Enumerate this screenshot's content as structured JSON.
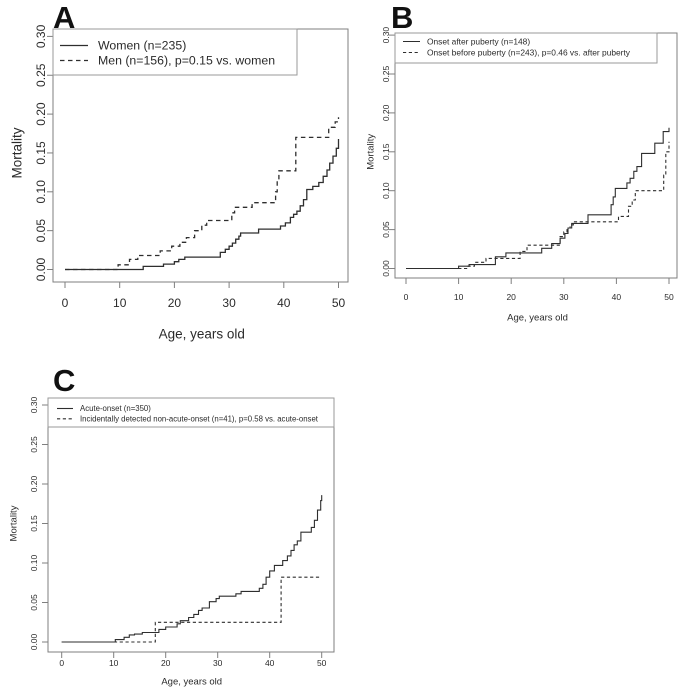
{
  "palette": {
    "curve": "#2e2e2e",
    "frame": "#7f7f7f",
    "text": "#2b2b2b",
    "legend_border": "#9a9a9a",
    "background": "#ffffff"
  },
  "chart_data": [
    {
      "type": "line",
      "step": true,
      "panel_label": "A",
      "title": "",
      "xlabel": "Age, years old",
      "ylabel": "Mortality",
      "xlim": [
        0,
        52
      ],
      "ylim": [
        0,
        0.3
      ],
      "grid": false,
      "legend_position": "top-left",
      "xticks": [
        0,
        10,
        20,
        30,
        40,
        50
      ],
      "ytick_labels": [
        "0.00",
        "0.05",
        "0.10",
        "0.15",
        "0.20",
        "0.25",
        "0.30"
      ],
      "series": [
        {
          "name": "Women (n=235)",
          "line_style": "solid",
          "x": [
            0,
            14.3,
            18,
            20,
            20.8,
            21.9,
            28.4,
            29.3,
            30,
            30.6,
            31.2,
            31.8,
            32.1,
            35.4,
            39.4,
            40.3,
            41.2,
            41.8,
            42.4,
            43,
            43.6,
            44.2,
            45.3,
            46.4,
            47.2,
            47.9,
            48.4,
            49,
            49.6,
            50
          ],
          "y": [
            0,
            0.004,
            0.007,
            0.01,
            0.013,
            0.016,
            0.022,
            0.026,
            0.03,
            0.034,
            0.039,
            0.043,
            0.047,
            0.052,
            0.056,
            0.06,
            0.067,
            0.071,
            0.075,
            0.082,
            0.09,
            0.103,
            0.107,
            0.112,
            0.12,
            0.128,
            0.137,
            0.146,
            0.156,
            0.168
          ]
        },
        {
          "name": "Men (n=156), p=0.15 vs. women",
          "line_style": "dashed",
          "x": [
            0,
            9.7,
            11.8,
            13.3,
            17.4,
            19.5,
            21,
            22.2,
            23.7,
            25,
            25.9,
            30.5,
            31,
            34.2,
            38.5,
            38.8,
            39.1,
            42.2,
            48.2,
            49.4,
            50
          ],
          "y": [
            0,
            0.006,
            0.013,
            0.018,
            0.024,
            0.03,
            0.035,
            0.041,
            0.05,
            0.057,
            0.063,
            0.073,
            0.08,
            0.086,
            0.1,
            0.115,
            0.127,
            0.17,
            0.183,
            0.19,
            0.196
          ]
        }
      ]
    },
    {
      "type": "line",
      "step": true,
      "panel_label": "B",
      "title": "",
      "xlabel": "Age, years old",
      "ylabel": "Mortality",
      "xlim": [
        0,
        52
      ],
      "ylim": [
        0,
        0.3
      ],
      "grid": false,
      "legend_position": "top-left",
      "xticks": [
        0,
        10,
        20,
        30,
        40,
        50
      ],
      "ytick_labels": [
        "0.00",
        "0.05",
        "0.10",
        "0.15",
        "0.20",
        "0.25",
        "0.30"
      ],
      "series": [
        {
          "name": "Onset after puberty (n=148)",
          "line_style": "solid",
          "x": [
            0,
            10,
            12,
            17,
            19,
            25.8,
            27.7,
            29.3,
            30.2,
            30.8,
            31.5,
            34.6,
            39,
            39.4,
            39.8,
            42,
            42.6,
            43.3,
            43.9,
            44.8,
            47.3,
            48.9,
            50
          ],
          "y": [
            0,
            0.003,
            0.005,
            0.015,
            0.02,
            0.026,
            0.032,
            0.039,
            0.045,
            0.052,
            0.058,
            0.069,
            0.082,
            0.092,
            0.103,
            0.11,
            0.116,
            0.125,
            0.131,
            0.148,
            0.161,
            0.176,
            0.181
          ]
        },
        {
          "name": "Onset before puberty (n=243), p=0.46 vs. after puberty",
          "line_style": "dashed",
          "x": [
            0,
            11.8,
            13,
            15.2,
            21.7,
            23,
            29.3,
            30,
            30.6,
            31.2,
            31.8,
            40.4,
            42.3,
            43,
            43.6,
            49,
            49.4,
            50
          ],
          "y": [
            0,
            0.003,
            0.008,
            0.013,
            0.022,
            0.03,
            0.041,
            0.047,
            0.052,
            0.056,
            0.06,
            0.067,
            0.08,
            0.088,
            0.1,
            0.12,
            0.15,
            0.163
          ]
        }
      ]
    },
    {
      "type": "line",
      "step": true,
      "panel_label": "C",
      "title": "",
      "xlabel": "Age, years old",
      "ylabel": "Mortality",
      "xlim": [
        0,
        52
      ],
      "ylim": [
        0,
        0.3
      ],
      "grid": false,
      "legend_position": "top-left",
      "xticks": [
        0,
        10,
        20,
        30,
        40,
        50
      ],
      "ytick_labels": [
        "0.00",
        "0.05",
        "0.10",
        "0.15",
        "0.20",
        "0.25",
        "0.30"
      ],
      "series": [
        {
          "name": "Acute-onset (n=350)",
          "line_style": "solid",
          "x": [
            0,
            10.3,
            12,
            13,
            14,
            15.5,
            18.7,
            20,
            22.2,
            22.8,
            24.4,
            25.4,
            26.3,
            27,
            28.4,
            29.7,
            30.3,
            33.5,
            34.5,
            38,
            38.7,
            39.3,
            40,
            40.9,
            42.5,
            43.4,
            44.1,
            44.7,
            45.3,
            46,
            48,
            48.6,
            49.2,
            49.8,
            50
          ],
          "y": [
            0,
            0.003,
            0.006,
            0.009,
            0.01,
            0.012,
            0.016,
            0.019,
            0.023,
            0.027,
            0.031,
            0.035,
            0.04,
            0.043,
            0.051,
            0.055,
            0.058,
            0.061,
            0.064,
            0.068,
            0.073,
            0.082,
            0.09,
            0.097,
            0.103,
            0.109,
            0.116,
            0.123,
            0.128,
            0.139,
            0.145,
            0.154,
            0.167,
            0.179,
            0.186
          ]
        },
        {
          "name": "Incidentally detected non-acute-onset (n=41), p=0.58 vs. acute-onset",
          "line_style": "dashed",
          "x": [
            0,
            18,
            42.2,
            50
          ],
          "y": [
            0,
            0.025,
            0.082,
            0.082
          ]
        }
      ]
    }
  ]
}
